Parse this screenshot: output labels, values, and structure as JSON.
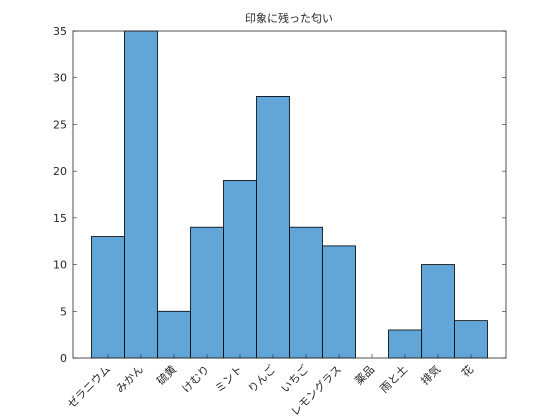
{
  "chart_data": {
    "type": "bar",
    "title": "印象に残った匂い",
    "categories": [
      "ゼラニウム",
      "みかん",
      "硫黄",
      "けむり",
      "ミント",
      "りんご",
      "いちご",
      "レモングラス",
      "薬品",
      "雨と土",
      "排気",
      "花"
    ],
    "values": [
      13,
      35,
      5,
      14,
      19,
      28,
      14,
      12,
      0,
      3,
      10,
      4
    ],
    "color": "#62a6d9",
    "ylim": [
      0,
      35
    ],
    "yticks": [
      0,
      5,
      10,
      15,
      20,
      25,
      30,
      35
    ],
    "grid": false
  }
}
